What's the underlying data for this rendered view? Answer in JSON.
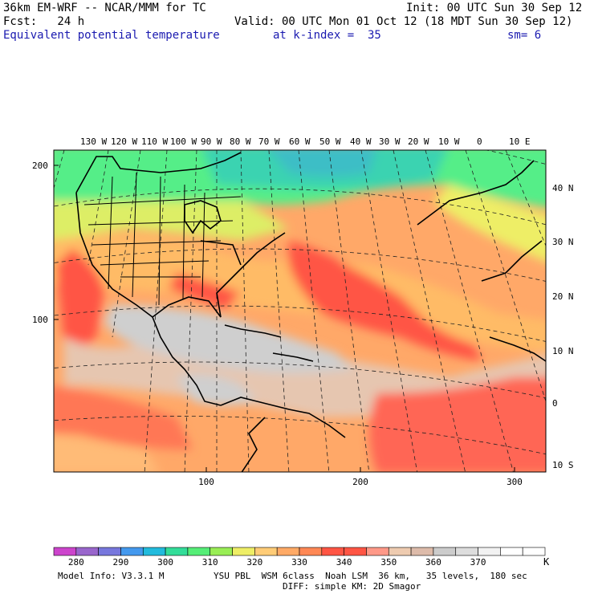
{
  "header": {
    "model_title": "36km EM-WRF -- NCAR/MMM for TC",
    "init": "Init: 00 UTC Sun 30 Sep 12",
    "forecast": "Fcst:   24 h",
    "valid": "Valid: 00 UTC Mon 01 Oct 12 (18 MDT Sun 30 Sep 12)",
    "field": "Equivalent potential temperature",
    "level": "at k-index =  35",
    "smoothing": "sm= 6"
  },
  "map": {
    "top_longitude_labels": [
      "130 W",
      "120 W",
      "110 W",
      "100 W",
      "90 W",
      "80 W",
      "70 W",
      "60 W",
      "50 W",
      "40 W",
      "30 W",
      "20 W",
      "10 W",
      "0",
      "10 E"
    ],
    "right_latitude_labels": [
      "40 N",
      "30 N",
      "20 N",
      "10 N",
      "0",
      "10 S"
    ],
    "left_grid_labels": [
      "200",
      "100"
    ],
    "bottom_grid_labels": [
      "100",
      "200",
      "300"
    ]
  },
  "colorbar": {
    "unit": "K",
    "tick_labels": [
      "280",
      "290",
      "300",
      "310",
      "320",
      "330",
      "340",
      "350",
      "360",
      "370"
    ],
    "colors": [
      "#cc44cc",
      "#9966cc",
      "#7777dd",
      "#4499ee",
      "#22bbdd",
      "#33dd99",
      "#55ee77",
      "#99ee55",
      "#eeee66",
      "#ffcc77",
      "#ffaa66",
      "#ff8855",
      "#ff5544",
      "#ff5544",
      "#ff9988",
      "#eecbb0",
      "#ddbbaa",
      "#cccccc",
      "#dddddd",
      "#f2f2f2",
      "#ffffff",
      "#ffffff"
    ]
  },
  "footer": {
    "model_info": "Model Info: V3.3.1 M",
    "physics": "YSU PBL  WSM 6class  Noah LSM  36 km,   35 levels,  180 sec",
    "physics2": "DIFF: simple KM: 2D Smagor"
  }
}
